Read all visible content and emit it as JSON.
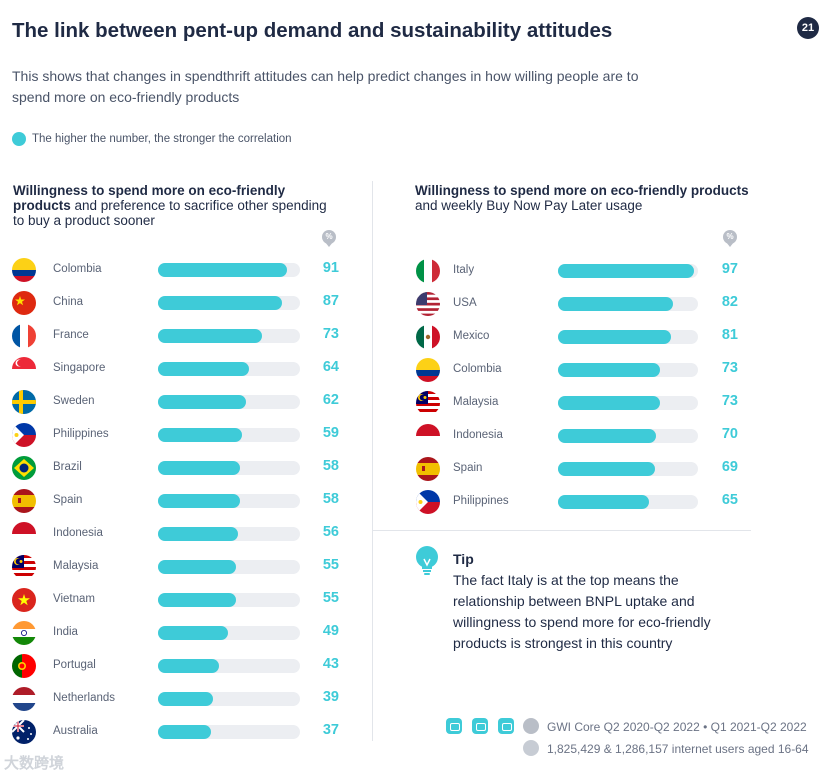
{
  "page": {
    "title": "The link between pent-up demand and sustainability attitudes",
    "page_number": "21",
    "subtitle": "This shows that changes in spendthrift attitudes can help predict changes in how willing people are to spend more on eco-friendly products",
    "legend": "The higher the number, the stronger the correlation",
    "percent_symbol": "%"
  },
  "colors": {
    "accent": "#3ecbd8",
    "track": "#eceef2",
    "text": "#1f2a44",
    "muted": "#5a6376"
  },
  "chart_data": [
    {
      "type": "bar",
      "orientation": "horizontal",
      "title_bold": "Willingness to spend more on eco-friendly products",
      "title_rest": " and preference to sacrifice other spending to buy a product sooner",
      "unit": "%",
      "xlim": [
        0,
        100
      ],
      "categories": [
        "Colombia",
        "China",
        "France",
        "Singapore",
        "Sweden",
        "Philippines",
        "Brazil",
        "Spain",
        "Indonesia",
        "Malaysia",
        "Vietnam",
        "India",
        "Portugal",
        "Netherlands",
        "Australia"
      ],
      "values": [
        91,
        87,
        73,
        64,
        62,
        59,
        58,
        58,
        56,
        55,
        55,
        49,
        43,
        39,
        37
      ],
      "flags": [
        "colombia",
        "china",
        "france",
        "singapore",
        "sweden",
        "philippines",
        "brazil",
        "spain",
        "indonesia",
        "malaysia",
        "vietnam",
        "india",
        "portugal",
        "netherlands",
        "australia"
      ]
    },
    {
      "type": "bar",
      "orientation": "horizontal",
      "title_bold": "Willingness to spend more on eco-friendly products",
      "title_rest": " and weekly Buy Now Pay Later usage",
      "unit": "%",
      "xlim": [
        0,
        100
      ],
      "categories": [
        "Italy",
        "USA",
        "Mexico",
        "Colombia",
        "Malaysia",
        "Indonesia",
        "Spain",
        "Philippines"
      ],
      "values": [
        97,
        82,
        81,
        73,
        73,
        70,
        69,
        65
      ],
      "flags": [
        "italy",
        "usa",
        "mexico",
        "colombia",
        "malaysia",
        "indonesia",
        "spain",
        "philippines"
      ]
    }
  ],
  "tip": {
    "icon": "lightbulb-icon",
    "title": "Tip",
    "text": "The fact Italy is at the top means the relationship between BNPL uptake and willingness to spend more for eco-friendly products is strongest in this country"
  },
  "source": {
    "line1": "GWI Core Q2 2020-Q2 2022 • Q1 2021-Q2 2022",
    "line2": "1,825,429 & 1,286,157 internet users aged 16-64"
  },
  "watermark": "大数跨境"
}
